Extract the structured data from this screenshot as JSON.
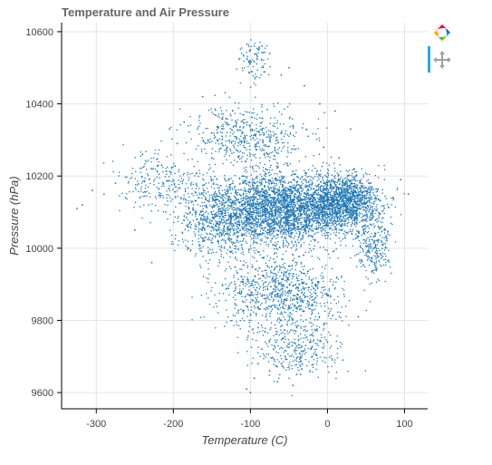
{
  "chart_data": {
    "type": "scatter",
    "title": "Temperature and Air Pressure",
    "xlabel": "Temperature (C)",
    "ylabel": "Pressure (hPa)",
    "xlim": [
      -345,
      130
    ],
    "ylim": [
      9555,
      10625
    ],
    "x_ticks": [
      -300,
      -200,
      -100,
      0,
      100
    ],
    "y_ticks": [
      9600,
      9800,
      10000,
      10200,
      10400,
      10600
    ],
    "x_tick_labels": [
      "-300",
      "-200",
      "-100",
      "0",
      "100"
    ],
    "y_tick_labels": [
      "9600",
      "9800",
      "10000",
      "10200",
      "10400",
      "10600"
    ],
    "grid": true,
    "point_color": "#1f77b4",
    "series": [
      {
        "points_note_values": "dense cloud of ~10000 observations; representative sample below",
        "x": [
          -325,
          -318,
          -305,
          -290,
          -275,
          -262,
          -250,
          -240,
          -228,
          -215,
          -205,
          -195,
          -186,
          -178,
          -170,
          -162,
          -155,
          -148,
          -140,
          -132,
          -125,
          -118,
          -110,
          -102,
          -95,
          -88,
          -80,
          -72,
          -65,
          -58,
          -50,
          -42,
          -35,
          -28,
          -20,
          -12,
          -5,
          3,
          10,
          18,
          26,
          34,
          42,
          50,
          58,
          66,
          75,
          85,
          95,
          105,
          -120,
          -100,
          -90,
          -70,
          -60,
          -40,
          -20,
          0,
          20,
          40,
          -150,
          -130,
          -110,
          -85,
          -65,
          -45,
          -25,
          -5,
          15,
          35,
          -100,
          -95,
          -85,
          -75,
          -60,
          -50,
          -30,
          -10,
          10,
          30,
          -180,
          -160,
          -140,
          -120,
          -100,
          -80,
          -60,
          -40,
          -20,
          0,
          -210,
          -190,
          -170,
          -150,
          -130,
          -110,
          -90,
          -70,
          -50,
          -30,
          -105,
          -100,
          -95,
          -90,
          -85,
          -75,
          -65,
          -55,
          -45,
          -35
        ],
        "y": [
          10110,
          10120,
          10160,
          10150,
          10180,
          10140,
          10050,
          10260,
          9960,
          10230,
          10330,
          10290,
          10350,
          10100,
          10060,
          10420,
          10300,
          10180,
          10130,
          10040,
          9990,
          10100,
          10200,
          10080,
          10150,
          10060,
          10120,
          10180,
          10050,
          10140,
          10100,
          10160,
          10090,
          10210,
          10130,
          10070,
          10180,
          10120,
          10150,
          10060,
          10200,
          10100,
          10130,
          10080,
          10170,
          10060,
          10050,
          10140,
          10190,
          10150,
          9900,
          9850,
          9780,
          9720,
          9680,
          9650,
          9700,
          9740,
          9690,
          9810,
          10250,
          10280,
          10320,
          10360,
          10300,
          10340,
          10310,
          10280,
          10250,
          10220,
          10550,
          10560,
          10560,
          10540,
          10480,
          10500,
          10450,
          10400,
          10380,
          10330,
          10000,
          10020,
          9960,
          9900,
          9870,
          9830,
          9800,
          9780,
          9760,
          9740,
          10100,
          10140,
          10080,
          10060,
          10040,
          10020,
          9990,
          9970,
          9950,
          9930,
          9610,
          9600,
          9640,
          9680,
          9720,
          9660,
          9630,
          9700,
          9620,
          9650
        ]
      }
    ]
  },
  "toolbar": {
    "logo_icon": "bokeh-logo-icon",
    "pan_icon": "pan-tool-icon",
    "active_color": "#26aae1"
  }
}
